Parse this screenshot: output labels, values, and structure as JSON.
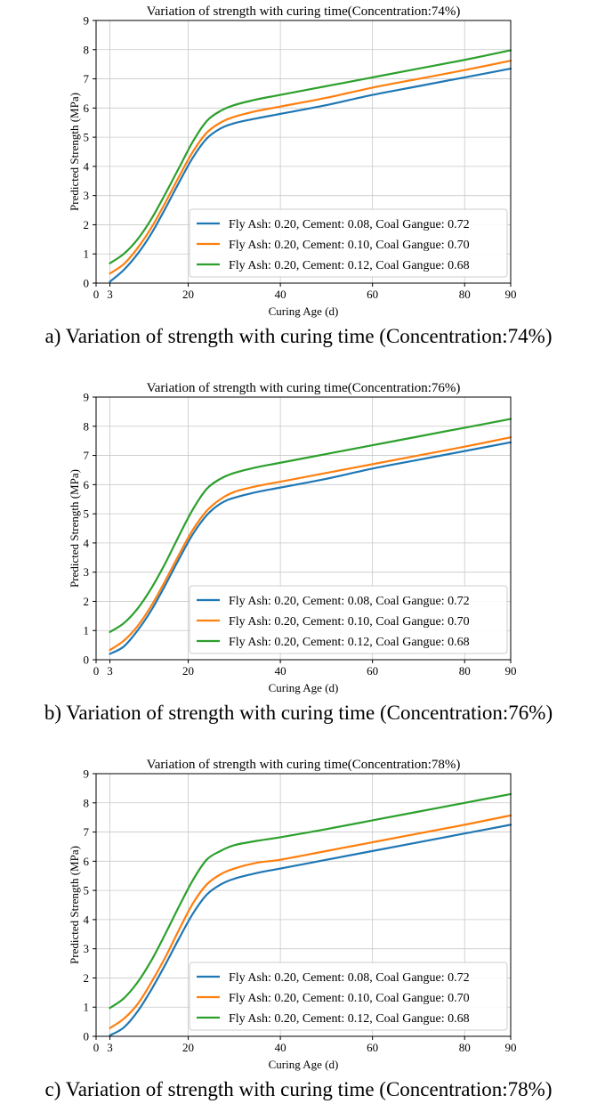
{
  "chart_data": [
    {
      "type": "line",
      "title": "Variation of strength with curing time(Concentration:74%)",
      "xlabel": "Curing Age (d)",
      "ylabel": "Predicted Strength (MPa)",
      "xlim": [
        0,
        90
      ],
      "ylim": [
        0,
        9
      ],
      "xticks": [
        0,
        3,
        20,
        40,
        60,
        80,
        90
      ],
      "yticks": [
        0,
        1,
        2,
        3,
        4,
        5,
        6,
        7,
        8,
        9
      ],
      "grid": true,
      "legend_position": "lower-right",
      "x": [
        3,
        6,
        9,
        12,
        15,
        18,
        21,
        24,
        27,
        30,
        35,
        40,
        50,
        60,
        70,
        80,
        90
      ],
      "series": [
        {
          "name": "Fly Ash: 0.20, Cement: 0.08, Coal Gangue: 0.72",
          "color": "#1f77b4",
          "values": [
            0.05,
            0.45,
            1.0,
            1.7,
            2.55,
            3.45,
            4.3,
            4.95,
            5.3,
            5.48,
            5.65,
            5.8,
            6.1,
            6.45,
            6.75,
            7.05,
            7.35
          ]
        },
        {
          "name": "Fly Ash: 0.20, Cement: 0.10, Coal Gangue: 0.70",
          "color": "#ff7f0e",
          "values": [
            0.33,
            0.65,
            1.2,
            1.9,
            2.75,
            3.65,
            4.5,
            5.15,
            5.5,
            5.7,
            5.9,
            6.05,
            6.35,
            6.7,
            7.0,
            7.3,
            7.62
          ]
        },
        {
          "name": "Fly Ash: 0.20, Cement: 0.12, Coal Gangue: 0.68",
          "color": "#2ca02c",
          "values": [
            0.68,
            1.0,
            1.5,
            2.2,
            3.05,
            3.95,
            4.85,
            5.55,
            5.9,
            6.1,
            6.3,
            6.45,
            6.75,
            7.05,
            7.35,
            7.65,
            7.98
          ]
        }
      ],
      "caption": "a) Variation of strength with curing time (Concentration:74%)"
    },
    {
      "type": "line",
      "title": "Variation of strength with curing time(Concentration:76%)",
      "xlabel": "Curing Age (d)",
      "ylabel": "Predicted Strength (MPa)",
      "xlim": [
        0,
        90
      ],
      "ylim": [
        0,
        9
      ],
      "xticks": [
        0,
        3,
        20,
        40,
        60,
        80,
        90
      ],
      "yticks": [
        0,
        1,
        2,
        3,
        4,
        5,
        6,
        7,
        8,
        9
      ],
      "grid": true,
      "legend_position": "lower-right",
      "x": [
        3,
        6,
        9,
        12,
        15,
        18,
        21,
        24,
        27,
        30,
        35,
        40,
        50,
        60,
        70,
        80,
        90
      ],
      "series": [
        {
          "name": "Fly Ash: 0.20, Cement: 0.08, Coal Gangue: 0.72",
          "color": "#1f77b4",
          "values": [
            0.2,
            0.45,
            1.0,
            1.7,
            2.55,
            3.45,
            4.3,
            4.95,
            5.35,
            5.55,
            5.75,
            5.9,
            6.2,
            6.55,
            6.85,
            7.15,
            7.45
          ]
        },
        {
          "name": "Fly Ash: 0.20, Cement: 0.10, Coal Gangue: 0.70",
          "color": "#ff7f0e",
          "values": [
            0.33,
            0.65,
            1.15,
            1.85,
            2.7,
            3.6,
            4.45,
            5.1,
            5.5,
            5.75,
            5.95,
            6.1,
            6.4,
            6.7,
            7.0,
            7.3,
            7.62
          ]
        },
        {
          "name": "Fly Ash: 0.20, Cement: 0.12, Coal Gangue: 0.68",
          "color": "#2ca02c",
          "values": [
            0.95,
            1.25,
            1.75,
            2.45,
            3.3,
            4.25,
            5.15,
            5.85,
            6.2,
            6.4,
            6.6,
            6.75,
            7.05,
            7.35,
            7.65,
            7.95,
            8.25
          ]
        }
      ],
      "caption": "b) Variation of strength with curing time (Concentration:76%)"
    },
    {
      "type": "line",
      "title": "Variation of strength with curing time(Concentration:78%)",
      "xlabel": "Curing Age (d)",
      "ylabel": "Predicted Strength (MPa)",
      "xlim": [
        0,
        90
      ],
      "ylim": [
        0,
        9
      ],
      "xticks": [
        0,
        3,
        20,
        40,
        60,
        80,
        90
      ],
      "yticks": [
        0,
        1,
        2,
        3,
        4,
        5,
        6,
        7,
        8,
        9
      ],
      "grid": true,
      "legend_position": "lower-right",
      "x": [
        3,
        6,
        9,
        12,
        15,
        18,
        21,
        24,
        27,
        30,
        35,
        40,
        50,
        60,
        70,
        80,
        90
      ],
      "series": [
        {
          "name": "Fly Ash: 0.20, Cement: 0.08, Coal Gangue: 0.72",
          "color": "#1f77b4",
          "values": [
            0.03,
            0.3,
            0.85,
            1.6,
            2.45,
            3.35,
            4.2,
            4.85,
            5.2,
            5.4,
            5.6,
            5.75,
            6.05,
            6.35,
            6.65,
            6.95,
            7.25
          ]
        },
        {
          "name": "Fly Ash: 0.20, Cement: 0.10, Coal Gangue: 0.70",
          "color": "#ff7f0e",
          "values": [
            0.28,
            0.6,
            1.1,
            1.85,
            2.7,
            3.65,
            4.55,
            5.2,
            5.55,
            5.75,
            5.95,
            6.05,
            6.35,
            6.65,
            6.95,
            7.25,
            7.57
          ]
        },
        {
          "name": "Fly Ash: 0.20, Cement: 0.12, Coal Gangue: 0.68",
          "color": "#2ca02c",
          "values": [
            0.97,
            1.3,
            1.85,
            2.6,
            3.5,
            4.45,
            5.35,
            6.05,
            6.35,
            6.55,
            6.7,
            6.82,
            7.1,
            7.4,
            7.7,
            8.0,
            8.3
          ]
        }
      ],
      "caption": "c) Variation of strength with curing time (Concentration:78%)"
    }
  ]
}
